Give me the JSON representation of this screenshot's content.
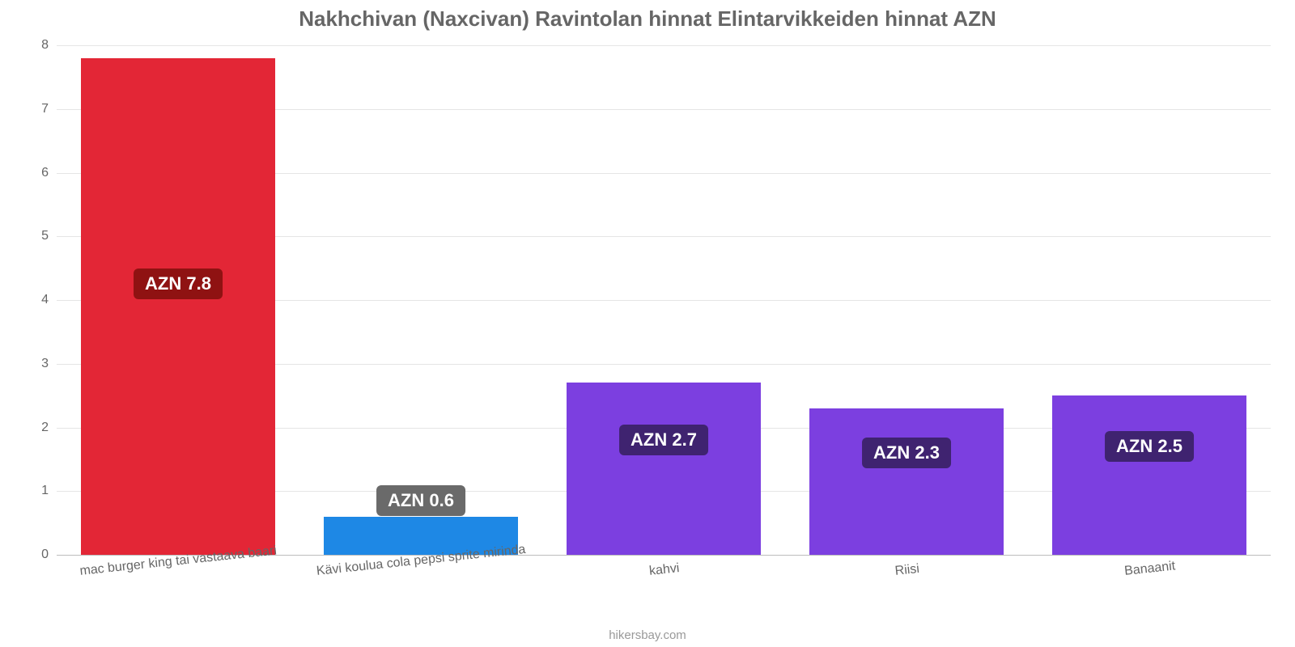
{
  "chart": {
    "type": "bar",
    "title": "Nakhchivan (Naxcivan) Ravintolan hinnat Elintarvikkeiden hinnat AZN",
    "title_color": "#666666",
    "title_fontsize": 26,
    "background_color": "#ffffff",
    "grid_color": "#e5e5e5",
    "baseline_color": "#bdbdbd",
    "attribution": "hikersbay.com",
    "attribution_color": "#999999",
    "y": {
      "min": 0,
      "max": 8,
      "tick_step": 1,
      "tick_color": "#666666",
      "tick_fontsize": 16
    },
    "x_label_color": "#666666",
    "x_label_fontsize": 16,
    "x_label_rotation_deg": -6,
    "bar_width_pct": 80,
    "items": [
      {
        "category": "mac burger king tai vastaava baari",
        "value": 7.8,
        "label": "AZN 7.8",
        "bar_color": "#e32636",
        "badge_bg": "#8f1212",
        "badge_text_color": "#ffffff",
        "badge_y_value": 4.25
      },
      {
        "category": "Kävi koulua cola pepsi sprite mirinda",
        "value": 0.6,
        "label": "AZN 0.6",
        "bar_color": "#1e88e5",
        "badge_bg": "#6a6a6a",
        "badge_text_color": "#ffffff",
        "badge_y_value": 0.85
      },
      {
        "category": "kahvi",
        "value": 2.7,
        "label": "AZN 2.7",
        "bar_color": "#7c3fe0",
        "badge_bg": "#3f2370",
        "badge_text_color": "#ffffff",
        "badge_y_value": 1.8
      },
      {
        "category": "Riisi",
        "value": 2.3,
        "label": "AZN 2.3",
        "bar_color": "#7c3fe0",
        "badge_bg": "#3f2370",
        "badge_text_color": "#ffffff",
        "badge_y_value": 1.6
      },
      {
        "category": "Banaanit",
        "value": 2.5,
        "label": "AZN 2.5",
        "bar_color": "#7c3fe0",
        "badge_bg": "#3f2370",
        "badge_text_color": "#ffffff",
        "badge_y_value": 1.7
      }
    ]
  }
}
